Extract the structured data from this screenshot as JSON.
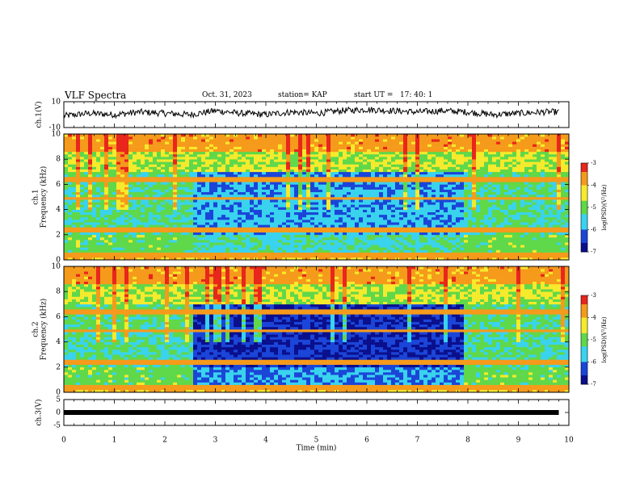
{
  "chart_data": [
    {
      "type": "line",
      "title": "VLF Spectra",
      "ylabel": "ch.1(V)",
      "ylim": [
        -10,
        10
      ],
      "yticks": [
        "10",
        "-10"
      ],
      "xlim": [
        0,
        10
      ],
      "x": [
        0,
        0.5,
        1,
        1.5,
        2,
        2.5,
        3,
        3.5,
        4,
        4.5,
        5,
        5.5,
        6,
        6.5,
        7,
        7.5,
        8,
        8.5,
        9,
        9.5,
        9.8
      ],
      "values": [
        -1,
        1,
        0,
        2,
        1,
        0,
        3,
        1,
        0,
        2,
        1,
        3,
        4,
        3,
        2,
        3,
        2,
        0,
        1,
        2,
        2
      ]
    },
    {
      "type": "heatmap",
      "ylabel": "ch.1\nFrequency (kHz)",
      "ylim": [
        0,
        10
      ],
      "yticks": [
        "0",
        "2",
        "4",
        "6",
        "8",
        "10"
      ],
      "colorbar_label": "log(PSD)(V²/Hz)",
      "colorbar_ticks": [
        "-3",
        "-4",
        "-5",
        "-6",
        "-7"
      ],
      "quiet_interval_min": [
        2.6,
        7.9
      ],
      "xlim": [
        0,
        10
      ]
    },
    {
      "type": "heatmap",
      "ylabel": "ch.2\nFrequency (kHz)",
      "ylim": [
        0,
        10
      ],
      "yticks": [
        "0",
        "2",
        "4",
        "6",
        "8",
        "10"
      ],
      "colorbar_label": "log(PSD)(V²/Hz)",
      "colorbar_ticks": [
        "-3",
        "-4",
        "-5",
        "-6",
        "-7"
      ],
      "quiet_interval_min": [
        2.6,
        7.9
      ],
      "xlim": [
        0,
        10
      ]
    },
    {
      "type": "line",
      "ylabel": "ch.3(V)",
      "ylim": [
        -5,
        5
      ],
      "yticks": [
        "5",
        "0",
        "-5"
      ],
      "xlim": [
        0,
        10
      ],
      "x": [
        0,
        9.8
      ],
      "values": [
        0,
        0
      ],
      "xlabel": "Time (min)",
      "xticks": [
        "0",
        "1",
        "2",
        "3",
        "4",
        "5",
        "6",
        "7",
        "8",
        "9",
        "10"
      ]
    }
  ],
  "header": {
    "title": "VLF Spectra",
    "date": "Oct. 31, 2023",
    "station": "station= KAP",
    "start": "start UT =   17: 40: 1"
  },
  "colors": {
    "red": "#e8261c",
    "orange": "#f59a1b",
    "yellow": "#f6ea2c",
    "green": "#5fd84a",
    "cyan": "#39d3ee",
    "blue": "#1b45d8",
    "navy": "#0a0f8c"
  }
}
